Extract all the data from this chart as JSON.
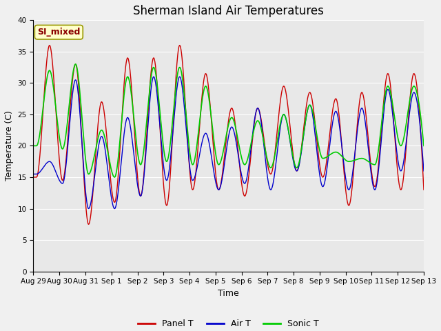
{
  "title": "Sherman Island Air Temperatures",
  "xlabel": "Time",
  "ylabel": "Temperature (C)",
  "ylim": [
    0,
    40
  ],
  "yticks": [
    0,
    5,
    10,
    15,
    20,
    25,
    30,
    35,
    40
  ],
  "plot_bg_color": "#e8e8e8",
  "fig_bg_color": "#f0f0f0",
  "panel_color": "#cc0000",
  "air_color": "#0000cc",
  "sonic_color": "#00cc00",
  "legend_labels": [
    "Panel T",
    "Air T",
    "Sonic T"
  ],
  "annotation_text": "SI_mixed",
  "annotation_text_color": "#8b0000",
  "annotation_bg": "#ffffcc",
  "annotation_edge": "#999900",
  "x_tick_labels": [
    "Aug 29",
    "Aug 30",
    "Aug 31",
    "Sep 1",
    "Sep 2",
    "Sep 3",
    "Sep 4",
    "Sep 5",
    "Sep 6",
    "Sep 7",
    "Sep 8",
    "Sep 9",
    "Sep 10",
    "Sep 11",
    "Sep 12",
    "Sep 13"
  ],
  "title_fontsize": 12,
  "axis_label_fontsize": 9,
  "tick_fontsize": 7.5,
  "legend_fontsize": 9,
  "annotation_fontsize": 9,
  "n_days": 15,
  "panel_peaks": [
    36.0,
    33.0,
    27.0,
    34.0,
    34.0,
    36.0,
    31.5,
    26.0,
    26.0,
    29.5,
    28.5,
    27.5,
    28.5,
    31.5,
    31.5
  ],
  "panel_troughs": [
    15.0,
    14.5,
    7.5,
    11.0,
    12.0,
    10.5,
    13.0,
    13.0,
    12.0,
    15.5,
    16.0,
    15.0,
    10.5,
    13.5,
    13.0
  ],
  "air_peaks": [
    17.5,
    30.5,
    21.5,
    24.5,
    31.0,
    31.0,
    22.0,
    23.0,
    26.0,
    25.0,
    26.5,
    25.5,
    26.0,
    29.0,
    28.5
  ],
  "air_troughs": [
    15.5,
    14.0,
    10.0,
    10.0,
    12.0,
    14.5,
    14.5,
    13.0,
    14.0,
    13.0,
    16.0,
    13.5,
    13.0,
    13.0,
    16.0
  ],
  "sonic_peaks": [
    32.0,
    33.0,
    22.5,
    31.0,
    32.5,
    32.5,
    29.5,
    24.5,
    24.0,
    25.0,
    26.5,
    19.0,
    18.0,
    29.5,
    29.5
  ],
  "sonic_troughs": [
    20.0,
    19.5,
    15.5,
    15.0,
    17.0,
    17.5,
    17.0,
    17.0,
    17.0,
    16.5,
    16.5,
    18.0,
    17.5,
    17.0,
    20.0
  ],
  "peak_phase": 0.62,
  "trough_phase": 0.12
}
